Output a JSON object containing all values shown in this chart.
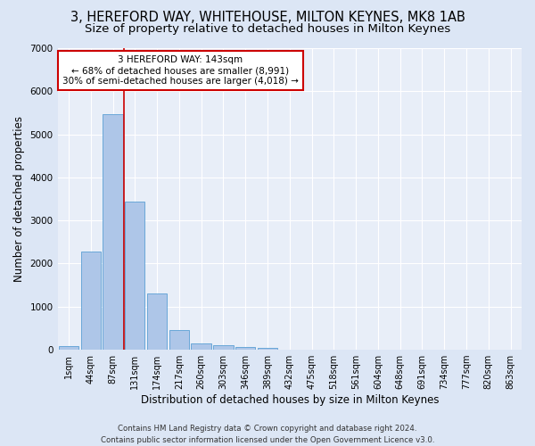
{
  "title": "3, HEREFORD WAY, WHITEHOUSE, MILTON KEYNES, MK8 1AB",
  "subtitle": "Size of property relative to detached houses in Milton Keynes",
  "xlabel": "Distribution of detached houses by size in Milton Keynes",
  "ylabel": "Number of detached properties",
  "footer_line1": "Contains HM Land Registry data © Crown copyright and database right 2024.",
  "footer_line2": "Contains public sector information licensed under the Open Government Licence v3.0.",
  "bar_labels": [
    "1sqm",
    "44sqm",
    "87sqm",
    "131sqm",
    "174sqm",
    "217sqm",
    "260sqm",
    "303sqm",
    "346sqm",
    "389sqm",
    "432sqm",
    "475sqm",
    "518sqm",
    "561sqm",
    "604sqm",
    "648sqm",
    "691sqm",
    "734sqm",
    "777sqm",
    "820sqm",
    "863sqm"
  ],
  "bar_values": [
    75,
    2270,
    5470,
    3440,
    1310,
    460,
    155,
    95,
    60,
    35,
    0,
    0,
    0,
    0,
    0,
    0,
    0,
    0,
    0,
    0,
    0
  ],
  "bar_color": "#aec6e8",
  "bar_edge_color": "#5a9fd4",
  "ylim": [
    0,
    7000
  ],
  "yticks": [
    0,
    1000,
    2000,
    3000,
    4000,
    5000,
    6000,
    7000
  ],
  "vline_x_index": 2.5,
  "vline_color": "#cc0000",
  "annotation_text": "3 HEREFORD WAY: 143sqm\n← 68% of detached houses are smaller (8,991)\n30% of semi-detached houses are larger (4,018) →",
  "annotation_box_color": "#ffffff",
  "annotation_border_color": "#cc0000",
  "background_color": "#dce6f5",
  "plot_area_color": "#e8eef8",
  "grid_color": "#ffffff",
  "title_fontsize": 10.5,
  "subtitle_fontsize": 9.5,
  "tick_label_fontsize": 7,
  "ylabel_fontsize": 8.5,
  "xlabel_fontsize": 8.5,
  "annotation_fontsize": 7.5,
  "footer_fontsize": 6.2
}
